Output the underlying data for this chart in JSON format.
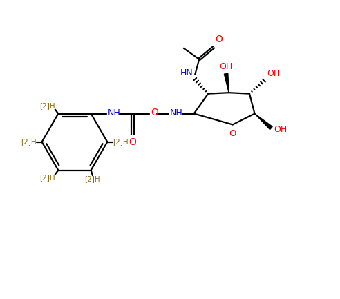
{
  "bg_color": "#ffffff",
  "bond_color": "#000000",
  "N_color": "#0000cc",
  "O_color": "#ff0000",
  "D_color": "#8B6914",
  "fig_width": 4.92,
  "fig_height": 4.33,
  "dpi": 100,
  "xlim": [
    0,
    9.84
  ],
  "ylim": [
    0,
    8.66
  ]
}
